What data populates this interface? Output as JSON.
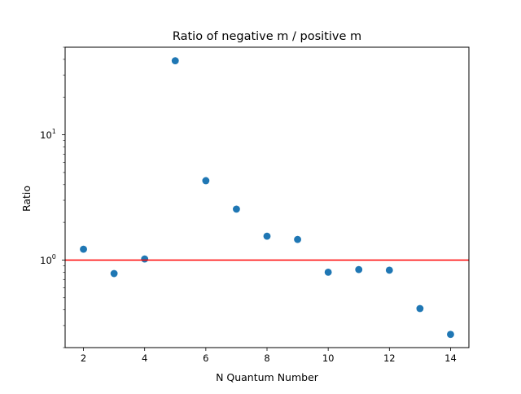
{
  "chart_data": {
    "type": "scatter",
    "title": "Ratio of negative m / positive m",
    "xlabel": "N Quantum Number",
    "ylabel": "Ratio",
    "yscale": "log",
    "xlim": [
      1.4,
      14.6
    ],
    "ylim": [
      0.2,
      50
    ],
    "xticks": [
      2,
      4,
      6,
      8,
      10,
      12,
      14
    ],
    "yticks": [
      {
        "value": 1,
        "base": "10",
        "exp": "0"
      },
      {
        "value": 10,
        "base": "10",
        "exp": "1"
      }
    ],
    "grid": false,
    "series": [
      {
        "color": "#1f77b4",
        "points": [
          {
            "x": 2,
            "y": 1.22
          },
          {
            "x": 3,
            "y": 0.78
          },
          {
            "x": 4,
            "y": 1.02
          },
          {
            "x": 5,
            "y": 39.0
          },
          {
            "x": 6,
            "y": 4.3
          },
          {
            "x": 7,
            "y": 2.55
          },
          {
            "x": 8,
            "y": 1.55
          },
          {
            "x": 9,
            "y": 1.46
          },
          {
            "x": 10,
            "y": 0.8
          },
          {
            "x": 11,
            "y": 0.84
          },
          {
            "x": 12,
            "y": 0.83
          },
          {
            "x": 13,
            "y": 0.41
          },
          {
            "x": 14,
            "y": 0.255
          }
        ]
      }
    ],
    "reference_line": {
      "y": 1.0,
      "color": "#ff0000"
    }
  }
}
